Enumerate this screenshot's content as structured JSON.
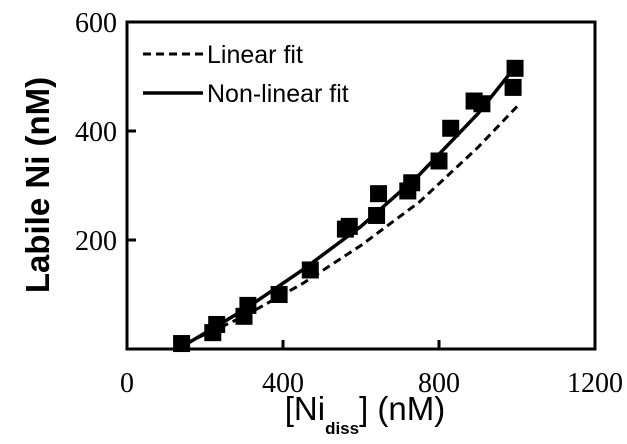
{
  "chart_data": {
    "type": "scatter",
    "xlabel_main": "[Ni",
    "xlabel_sub": "diss",
    "xlabel_tail": "] (nM)",
    "ylabel": "Labile Ni (nM)",
    "xlim": [
      0,
      1200
    ],
    "ylim": [
      0,
      600
    ],
    "xticks": [
      "0",
      "400",
      "800",
      "1200"
    ],
    "xtick_values": [
      0,
      400,
      800,
      1200
    ],
    "yticks": [
      "200",
      "400",
      "600"
    ],
    "ytick_values": [
      200,
      400,
      600
    ],
    "grid": false,
    "legend_position": "top-left",
    "points": {
      "marker": "square",
      "x": [
        140,
        220,
        230,
        300,
        310,
        390,
        470,
        560,
        570,
        640,
        645,
        720,
        730,
        800,
        830,
        890,
        910,
        990,
        995
      ],
      "y": [
        10,
        30,
        45,
        60,
        80,
        100,
        145,
        220,
        225,
        245,
        285,
        290,
        305,
        345,
        405,
        455,
        450,
        480,
        515
      ]
    },
    "series": [
      {
        "name": "Linear fit",
        "style": "dashed",
        "x": [
          150,
          300,
          450,
          600,
          750,
          900,
          1000
        ],
        "y": [
          10,
          60,
          120,
          190,
          270,
          370,
          445
        ]
      },
      {
        "name": "Non-linear fit",
        "style": "solid",
        "x": [
          150,
          300,
          450,
          600,
          750,
          900,
          1000
        ],
        "y": [
          8,
          72,
          145,
          225,
          320,
          432,
          522
        ]
      }
    ]
  }
}
